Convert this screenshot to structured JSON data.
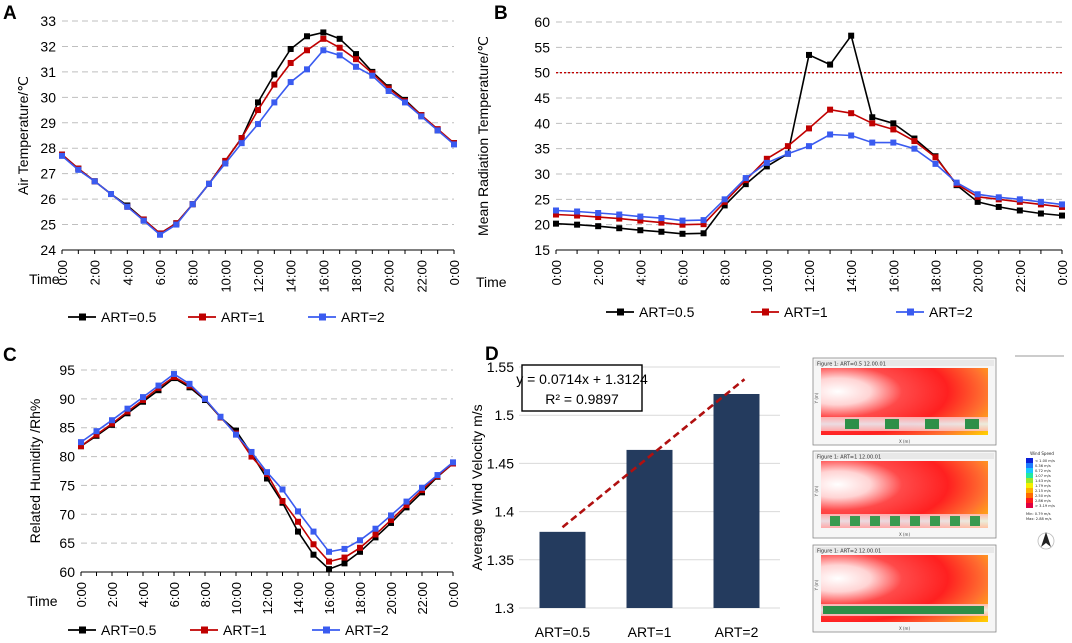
{
  "colors": {
    "black": "#000000",
    "red": "#C00000",
    "blue": "#3A5BF0",
    "bar": "#243B5E",
    "trend": "#B01010",
    "threshold": "#C00000",
    "grid": "#BFBFBF"
  },
  "chart_data": [
    {
      "panel": "A",
      "type": "line",
      "ylabel": "Air Temperature/℃",
      "xlabel": "Time",
      "ylim": [
        24,
        33
      ],
      "yticks": [
        24,
        25,
        26,
        27,
        28,
        29,
        30,
        31,
        32,
        33
      ],
      "x": [
        0,
        1,
        2,
        3,
        4,
        5,
        6,
        7,
        8,
        9,
        10,
        11,
        12,
        13,
        14,
        15,
        16,
        17,
        18,
        19,
        20,
        21,
        22,
        23,
        24
      ],
      "xtick_labels": [
        "0:00",
        "2:00",
        "4:00",
        "6:00",
        "8:00",
        "10:00",
        "12:00",
        "14:00",
        "16:00",
        "18:00",
        "20:00",
        "22:00",
        "0:00"
      ],
      "legend": [
        "ART=0.5",
        "ART=1",
        "ART=2"
      ],
      "series": [
        {
          "name": "ART=0.5",
          "color": "black",
          "values": [
            27.75,
            27.2,
            26.7,
            26.2,
            25.75,
            25.2,
            24.65,
            25.05,
            25.8,
            26.6,
            27.5,
            28.4,
            29.8,
            30.9,
            31.9,
            32.4,
            32.55,
            32.3,
            31.7,
            31.0,
            30.4,
            29.9,
            29.3,
            28.7,
            28.2
          ]
        },
        {
          "name": "ART=1",
          "color": "red",
          "values": [
            27.75,
            27.2,
            26.7,
            26.2,
            25.7,
            25.2,
            24.65,
            25.05,
            25.8,
            26.6,
            27.5,
            28.4,
            29.5,
            30.5,
            31.35,
            31.85,
            32.3,
            31.95,
            31.5,
            30.95,
            30.35,
            29.85,
            29.3,
            28.75,
            28.2
          ]
        },
        {
          "name": "ART=2",
          "color": "blue",
          "values": [
            27.7,
            27.15,
            26.7,
            26.2,
            25.7,
            25.15,
            24.6,
            25.0,
            25.8,
            26.6,
            27.4,
            28.2,
            28.95,
            29.8,
            30.6,
            31.1,
            31.85,
            31.65,
            31.2,
            30.85,
            30.25,
            29.8,
            29.25,
            28.7,
            28.15
          ]
        }
      ]
    },
    {
      "panel": "B",
      "type": "line",
      "ylabel": "Mean Radiation Temperature/℃",
      "xlabel": "Time",
      "ylim": [
        15,
        60
      ],
      "yticks": [
        15,
        20,
        25,
        30,
        35,
        40,
        45,
        50,
        55,
        60
      ],
      "threshold": 50,
      "x": [
        0,
        1,
        2,
        3,
        4,
        5,
        6,
        7,
        8,
        9,
        10,
        11,
        12,
        13,
        14,
        15,
        16,
        17,
        18,
        19,
        20,
        21,
        22,
        23,
        24
      ],
      "xtick_labels": [
        "0:00",
        "2:00",
        "4:00",
        "6:00",
        "8:00",
        "10:00",
        "12:00",
        "14:00",
        "16:00",
        "18:00",
        "20:00",
        "22:00",
        "0:00"
      ],
      "legend": [
        "ART=0.5",
        "ART=1",
        "ART=2"
      ],
      "series": [
        {
          "name": "ART=0.5",
          "color": "black",
          "values": [
            20.2,
            20.0,
            19.7,
            19.3,
            18.9,
            18.6,
            18.2,
            18.3,
            23.8,
            28.0,
            31.5,
            34.0,
            53.5,
            51.6,
            57.3,
            41.2,
            40.0,
            37.0,
            33.5,
            27.8,
            24.5,
            23.5,
            22.8,
            22.2,
            21.8
          ]
        },
        {
          "name": "ART=1",
          "color": "red",
          "values": [
            22.0,
            21.8,
            21.5,
            21.2,
            20.8,
            20.4,
            20.0,
            20.1,
            24.5,
            28.8,
            33.0,
            35.5,
            39.0,
            42.7,
            42.0,
            40.0,
            38.8,
            36.5,
            33.3,
            28.0,
            25.5,
            25.0,
            24.5,
            24.0,
            23.5
          ]
        },
        {
          "name": "ART=2",
          "color": "blue",
          "values": [
            22.8,
            22.6,
            22.3,
            22.0,
            21.6,
            21.3,
            20.8,
            20.9,
            25.0,
            29.2,
            32.2,
            34.0,
            35.5,
            37.8,
            37.6,
            36.2,
            36.2,
            35.0,
            32.0,
            28.3,
            26.0,
            25.4,
            25.0,
            24.5,
            24.0
          ]
        }
      ]
    },
    {
      "panel": "C",
      "type": "line",
      "ylabel": "Related Humidity /Rh%",
      "xlabel": "Time",
      "ylim": [
        60,
        95
      ],
      "yticks": [
        60,
        65,
        70,
        75,
        80,
        85,
        90,
        95
      ],
      "x": [
        0,
        1,
        2,
        3,
        4,
        5,
        6,
        7,
        8,
        9,
        10,
        11,
        12,
        13,
        14,
        15,
        16,
        17,
        18,
        19,
        20,
        21,
        22,
        23,
        24
      ],
      "xtick_labels": [
        "0:00",
        "2:00",
        "4:00",
        "6:00",
        "8:00",
        "10:00",
        "12:00",
        "14:00",
        "16:00",
        "18:00",
        "20:00",
        "22:00",
        "0:00"
      ],
      "legend": [
        "ART=0.5",
        "ART=1",
        "ART=2"
      ],
      "series": [
        {
          "name": "ART=0.5",
          "color": "black",
          "values": [
            81.8,
            83.6,
            85.5,
            87.5,
            89.5,
            91.5,
            93.6,
            92.0,
            89.8,
            86.8,
            84.5,
            80.5,
            76.2,
            72.0,
            67.0,
            63.0,
            60.5,
            61.5,
            63.5,
            66.0,
            68.5,
            71.2,
            73.8,
            76.5,
            78.8
          ]
        },
        {
          "name": "ART=1",
          "color": "red",
          "values": [
            81.8,
            83.8,
            85.7,
            87.8,
            89.8,
            91.9,
            93.8,
            92.3,
            90.0,
            86.8,
            84.0,
            80.0,
            77.0,
            72.3,
            68.7,
            64.8,
            61.8,
            62.5,
            64.2,
            66.5,
            69.0,
            71.6,
            74.2,
            76.6,
            78.8
          ]
        },
        {
          "name": "ART=2",
          "color": "blue",
          "values": [
            82.5,
            84.4,
            86.3,
            88.3,
            90.3,
            92.3,
            94.3,
            92.6,
            90.0,
            86.9,
            83.8,
            80.8,
            77.3,
            74.3,
            70.5,
            67.0,
            63.5,
            64.0,
            65.5,
            67.5,
            69.8,
            72.2,
            74.6,
            76.8,
            79.0
          ]
        }
      ]
    },
    {
      "panel": "D",
      "type": "bar",
      "ylabel": "Average Wind Velocity m/s",
      "ylim": [
        1.3,
        1.55
      ],
      "yticks": [
        "1.3",
        "1.35",
        "1.4",
        "1.45",
        "1.5",
        "1.55"
      ],
      "categories": [
        "ART=0.5",
        "ART=1",
        "ART=2"
      ],
      "values": [
        1.379,
        1.464,
        1.522
      ],
      "trendline": {
        "slope": 0.0714,
        "intercept": 1.3124,
        "equation": "y = 0.0714x + 1.3124",
        "r2": "R² = 0.9897"
      }
    }
  ],
  "simulation": {
    "frames": [
      {
        "title": "Figure 1: ART=0.5 12.00.01"
      },
      {
        "title": "Figure 1: ART=1 12.00.01"
      },
      {
        "title": "Figure 1: ART=2 12.00.01"
      }
    ],
    "axis_label_x": "X (m)",
    "axis_label_y": "Y (m)",
    "legend_title": "Wind Speed",
    "legend_items": [
      "< 1.00 m/s",
      "0.36 m/s",
      "0.72 m/s",
      "1.07 m/s",
      "1.43 m/s",
      "1.79 m/s",
      "2.15 m/s",
      "2.50 m/s",
      "2.86 m/s",
      "> 3.19 m/s"
    ],
    "legend_colors": [
      "#0b1fd8",
      "#1c7cff",
      "#18c8ff",
      "#22e8a0",
      "#9ae82a",
      "#f4f000",
      "#ffb000",
      "#ff6a00",
      "#ff1c1c",
      "#e00040"
    ],
    "legend_foot": [
      "Min: 0.79 m/s",
      "Max: 2.88 m/s"
    ]
  }
}
